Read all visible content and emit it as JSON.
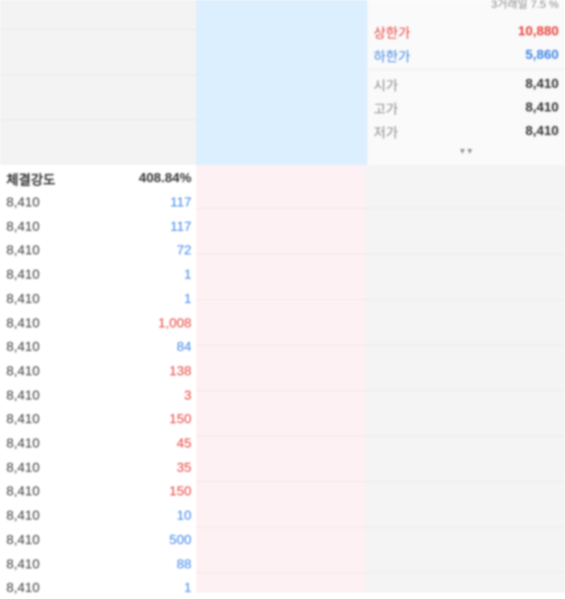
{
  "info_panel": {
    "top_text": "3거래일 7.5 %",
    "upper_limit_label": "상한가",
    "upper_limit_value": "10,880",
    "lower_limit_label": "하한가",
    "lower_limit_value": "5,860",
    "open_label": "시가",
    "open_value": "8,410",
    "high_label": "고가",
    "high_value": "8,410",
    "low_label": "저가",
    "low_value": "8,410",
    "more_label": "▾ ▾"
  },
  "trade_list": {
    "header_label": "체결강도",
    "header_value": "408.84%",
    "rows": [
      {
        "price": "8,410",
        "volume": "117",
        "dir": "down"
      },
      {
        "price": "8,410",
        "volume": "117",
        "dir": "down"
      },
      {
        "price": "8,410",
        "volume": "72",
        "dir": "down"
      },
      {
        "price": "8,410",
        "volume": "1",
        "dir": "down"
      },
      {
        "price": "8,410",
        "volume": "1",
        "dir": "down"
      },
      {
        "price": "8,410",
        "volume": "1,008",
        "dir": "up"
      },
      {
        "price": "8,410",
        "volume": "84",
        "dir": "down"
      },
      {
        "price": "8,410",
        "volume": "138",
        "dir": "up"
      },
      {
        "price": "8,410",
        "volume": "3",
        "dir": "up"
      },
      {
        "price": "8,410",
        "volume": "150",
        "dir": "up"
      },
      {
        "price": "8,410",
        "volume": "45",
        "dir": "up"
      },
      {
        "price": "8,410",
        "volume": "35",
        "dir": "up"
      },
      {
        "price": "8,410",
        "volume": "150",
        "dir": "up"
      },
      {
        "price": "8,410",
        "volume": "10",
        "dir": "down"
      },
      {
        "price": "8,410",
        "volume": "500",
        "dir": "down"
      },
      {
        "price": "8,410",
        "volume": "88",
        "dir": "down"
      },
      {
        "price": "8,410",
        "volume": "1",
        "dir": "down"
      }
    ]
  },
  "colors": {
    "up": "#e8413c",
    "down": "#3f86e8"
  }
}
